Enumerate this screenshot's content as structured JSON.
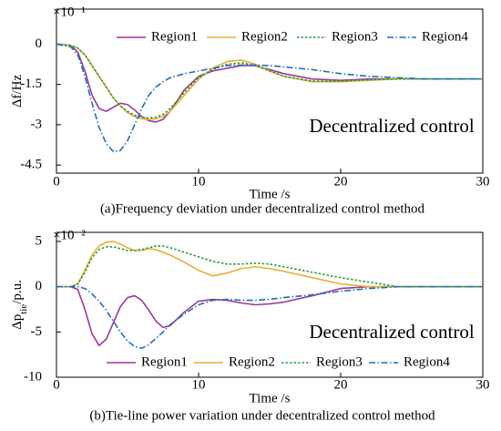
{
  "chart_data": [
    {
      "type": "line",
      "caption": "(a)Frequency deviation under decentralized control method",
      "xlabel": "Time /s",
      "ylabel": [
        "Δf/Hz"
      ],
      "exponent": "×10⁻¹",
      "annotation": "Decentralized control",
      "legend": "upper",
      "x": [
        0,
        1,
        1.5,
        2,
        2.5,
        3,
        3.5,
        4,
        4.5,
        5,
        5.5,
        6,
        6.5,
        7,
        7.5,
        8,
        9,
        10,
        11,
        12,
        13,
        14,
        15,
        16,
        18,
        20,
        22,
        24,
        26,
        28,
        30
      ],
      "xlim": [
        0,
        30
      ],
      "xticks": [
        0,
        10,
        20,
        30
      ],
      "ylim": [
        -4.8,
        1.3
      ],
      "yticks": [
        0,
        -1.5,
        -3,
        -4.5
      ],
      "series": [
        {
          "name": "Region1",
          "color": "#9b3a96",
          "style": "solid",
          "values": [
            0,
            -0.05,
            -0.3,
            -1.0,
            -1.9,
            -2.4,
            -2.5,
            -2.35,
            -2.2,
            -2.25,
            -2.45,
            -2.7,
            -2.85,
            -2.9,
            -2.8,
            -2.5,
            -1.7,
            -1.2,
            -1.0,
            -0.9,
            -0.8,
            -0.8,
            -0.95,
            -1.1,
            -1.3,
            -1.35,
            -1.3,
            -1.3,
            -1.3,
            -1.3,
            -1.3
          ]
        },
        {
          "name": "Region2",
          "color": "#e6b02e",
          "style": "solid",
          "values": [
            0,
            -0.05,
            -0.15,
            -0.4,
            -0.8,
            -1.2,
            -1.6,
            -2.0,
            -2.3,
            -2.55,
            -2.7,
            -2.78,
            -2.8,
            -2.78,
            -2.7,
            -2.5,
            -1.9,
            -1.3,
            -0.9,
            -0.65,
            -0.6,
            -0.75,
            -1.0,
            -1.2,
            -1.4,
            -1.4,
            -1.35,
            -1.3,
            -1.3,
            -1.3,
            -1.3
          ]
        },
        {
          "name": "Region3",
          "color": "#2e9a3a",
          "style": "dotted",
          "values": [
            0,
            -0.05,
            -0.15,
            -0.4,
            -0.8,
            -1.2,
            -1.6,
            -2.0,
            -2.3,
            -2.5,
            -2.65,
            -2.72,
            -2.75,
            -2.72,
            -2.62,
            -2.4,
            -1.8,
            -1.25,
            -0.95,
            -0.75,
            -0.7,
            -0.8,
            -1.0,
            -1.2,
            -1.38,
            -1.38,
            -1.33,
            -1.3,
            -1.3,
            -1.3,
            -1.3
          ]
        },
        {
          "name": "Region4",
          "color": "#1f6fc0",
          "style": "dashdot",
          "values": [
            0,
            -0.1,
            -0.4,
            -1.2,
            -2.2,
            -3.1,
            -3.7,
            -4.0,
            -3.95,
            -3.6,
            -3.0,
            -2.4,
            -1.9,
            -1.6,
            -1.4,
            -1.25,
            -1.1,
            -1.0,
            -0.9,
            -0.8,
            -0.78,
            -0.78,
            -0.8,
            -0.85,
            -0.95,
            -1.1,
            -1.2,
            -1.25,
            -1.3,
            -1.3,
            -1.3
          ]
        }
      ]
    },
    {
      "type": "line",
      "caption": "(b)Tie-line power variation under decentralized control method",
      "xlabel": "Time /s",
      "ylabel": [
        "Δp",
        "tie",
        "/p.u."
      ],
      "exponent": "×10⁻²",
      "annotation": "Decentralized control",
      "legend": "lower",
      "x": [
        0,
        1,
        1.5,
        2,
        2.5,
        3,
        3.5,
        4,
        4.5,
        5,
        5.5,
        6,
        6.5,
        7,
        7.5,
        8,
        9,
        10,
        11,
        12,
        13,
        14,
        15,
        16,
        18,
        20,
        22,
        24,
        26,
        28,
        30
      ],
      "xlim": [
        0,
        30
      ],
      "xticks": [
        0,
        10,
        20,
        30
      ],
      "ylim": [
        -10,
        6
      ],
      "yticks": [
        5,
        0,
        -5,
        -10
      ],
      "series": [
        {
          "name": "Region1",
          "color": "#9b3a96",
          "style": "solid",
          "values": [
            0,
            0,
            -0.3,
            -2.5,
            -5.2,
            -6.5,
            -5.8,
            -4.0,
            -2.2,
            -1.2,
            -1.0,
            -1.5,
            -2.6,
            -3.8,
            -4.5,
            -4.3,
            -2.8,
            -1.6,
            -1.4,
            -1.5,
            -1.8,
            -2.0,
            -1.9,
            -1.7,
            -1.0,
            -0.2,
            0,
            0,
            0,
            0,
            0
          ]
        },
        {
          "name": "Region2",
          "color": "#e6b02e",
          "style": "solid",
          "values": [
            0,
            0,
            0.3,
            1.8,
            3.5,
            4.5,
            4.9,
            5.0,
            4.7,
            4.3,
            4.0,
            4.0,
            4.2,
            4.1,
            3.8,
            3.5,
            2.7,
            1.8,
            1.2,
            1.5,
            2.0,
            2.2,
            2.0,
            1.7,
            1.0,
            0.3,
            0,
            0,
            0,
            0,
            0
          ]
        },
        {
          "name": "Region3",
          "color": "#2e9a3a",
          "style": "dotted",
          "values": [
            0,
            0,
            0.3,
            1.6,
            3.2,
            4.1,
            4.4,
            4.4,
            4.2,
            4.0,
            4.0,
            4.1,
            4.3,
            4.5,
            4.5,
            4.3,
            3.8,
            3.3,
            2.8,
            2.5,
            2.5,
            2.6,
            2.5,
            2.2,
            1.6,
            1.0,
            0.5,
            0,
            0,
            0,
            0
          ]
        },
        {
          "name": "Region4",
          "color": "#1f6fc0",
          "style": "dashdot",
          "values": [
            0,
            0,
            0,
            -0.2,
            -0.8,
            -1.6,
            -2.6,
            -3.8,
            -5.0,
            -6.0,
            -6.6,
            -6.8,
            -6.4,
            -5.7,
            -5.0,
            -4.2,
            -3.0,
            -2.0,
            -1.5,
            -1.4,
            -1.5,
            -1.5,
            -1.4,
            -1.2,
            -0.9,
            -0.5,
            -0.2,
            0,
            0,
            0,
            0
          ]
        }
      ]
    }
  ]
}
